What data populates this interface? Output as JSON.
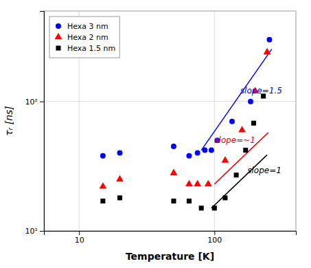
{
  "chart_data": {
    "type": "scatter",
    "xlabel": "Temperature [K]",
    "ylabel": "τᵣ [ns]",
    "log": true,
    "xlim": [
      5.5,
      400
    ],
    "ylim": [
      10,
      500
    ],
    "xticks": [
      10,
      100
    ],
    "yticks": [
      {
        "value": 10,
        "label": "10¹"
      },
      {
        "value": 100,
        "label": "10²"
      }
    ],
    "grid": true,
    "legend": "upper left",
    "series": [
      {
        "name": "Hexa 3 nm",
        "type": "scatter",
        "color": "#0000ff",
        "marker": "circle",
        "x": [
          15,
          20,
          50,
          65,
          75,
          85,
          95,
          105,
          135,
          185,
          255
        ],
        "values": [
          38,
          40,
          45,
          38,
          40,
          42,
          42,
          50,
          70,
          100,
          300
        ]
      },
      {
        "name": "Hexa 2 nm",
        "type": "scatter",
        "color": "#ff0000",
        "marker": "triangle",
        "x": [
          15,
          20,
          50,
          65,
          75,
          90,
          120,
          160,
          200,
          245
        ],
        "values": [
          22,
          25,
          28,
          23,
          23,
          23,
          35,
          60,
          120,
          240
        ]
      },
      {
        "name": "Hexa 1.5 nm",
        "type": "scatter",
        "color": "#000000",
        "marker": "square",
        "x": [
          15,
          20,
          50,
          65,
          80,
          100,
          120,
          145,
          170,
          195,
          230
        ],
        "values": [
          17,
          18,
          17,
          17,
          15,
          15,
          18,
          27,
          42,
          68,
          110
        ]
      },
      {
        "type": "line",
        "color": "#0000ff",
        "line_style": "solid",
        "x": [
          80,
          265
        ],
        "values": [
          42,
          253.2113
        ]
      },
      {
        "type": "line",
        "color": "#ff0000",
        "line_style": "solid",
        "x": [
          100,
          250
        ],
        "values": [
          23,
          57.5
        ]
      },
      {
        "type": "line",
        "color": "#000000",
        "line_style": "solid",
        "x": [
          95,
          245
        ],
        "values": [
          15,
          38.684211
        ]
      }
    ],
    "annotations": [
      {
        "text": "slope=1.5",
        "x": 155,
        "y": 115,
        "color": "#0000ff"
      },
      {
        "text": "slope=~1",
        "x": 100,
        "y": 48,
        "color": "#ff0000"
      },
      {
        "text": "slope=1",
        "x": 175,
        "y": 28,
        "color": "#000000"
      }
    ]
  }
}
